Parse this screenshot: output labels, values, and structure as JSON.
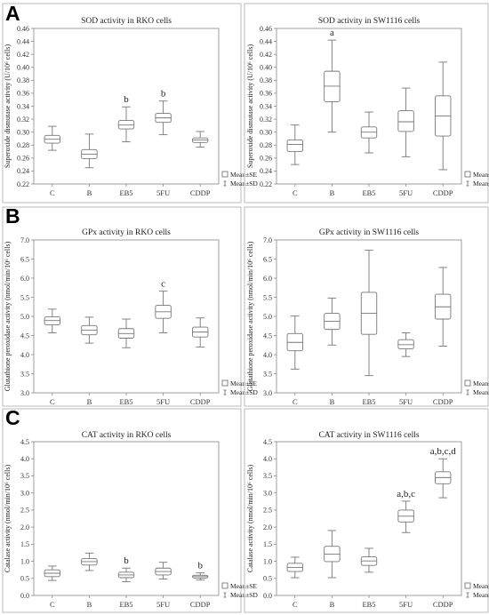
{
  "panels": [
    {
      "letter": "A"
    },
    {
      "letter": "B"
    },
    {
      "letter": "C"
    }
  ],
  "legend": {
    "se_label": "Mean±SE",
    "sd_label": "Mean±SD"
  },
  "chart_data": [
    {
      "type": "box",
      "panel": "A",
      "title": "SOD activity in RKO cells",
      "ylabel": "Superoxide dismutase activity (U/10⁶ cells)",
      "ylim": [
        0.22,
        0.46
      ],
      "yticks": [
        "0.22",
        "0.24",
        "0.26",
        "0.28",
        "0.30",
        "0.32",
        "0.34",
        "0.36",
        "0.38",
        "0.40",
        "0.42",
        "0.44",
        "0.46"
      ],
      "categories": [
        "C",
        "B",
        "EB5",
        "5FU",
        "CDDP"
      ],
      "mean": [
        0.289,
        0.266,
        0.311,
        0.322,
        0.288
      ],
      "se_low": [
        0.283,
        0.259,
        0.305,
        0.315,
        0.284
      ],
      "se_high": [
        0.295,
        0.273,
        0.318,
        0.329,
        0.291
      ],
      "sd_low": [
        0.272,
        0.245,
        0.285,
        0.296,
        0.277
      ],
      "sd_high": [
        0.309,
        0.297,
        0.339,
        0.348,
        0.301
      ],
      "annotations": [
        "",
        "",
        "b",
        "b",
        ""
      ]
    },
    {
      "type": "box",
      "panel": "A",
      "title": "SOD activity in SW1116 cells",
      "ylabel": "Superoxide dismutase activity (U/10⁶ cells)",
      "ylim": [
        0.22,
        0.46
      ],
      "yticks": [
        "0.22",
        "0.24",
        "0.26",
        "0.28",
        "0.30",
        "0.32",
        "0.34",
        "0.36",
        "0.38",
        "0.40",
        "0.42",
        "0.44",
        "0.46"
      ],
      "categories": [
        "C",
        "B",
        "EB5",
        "5FU",
        "CDDP"
      ],
      "mean": [
        0.281,
        0.371,
        0.3,
        0.316,
        0.325
      ],
      "se_low": [
        0.27,
        0.347,
        0.291,
        0.301,
        0.294
      ],
      "se_high": [
        0.288,
        0.394,
        0.308,
        0.333,
        0.356
      ],
      "sd_low": [
        0.25,
        0.3,
        0.268,
        0.262,
        0.242
      ],
      "sd_high": [
        0.311,
        0.442,
        0.331,
        0.368,
        0.408
      ],
      "annotations": [
        "",
        "a",
        "",
        "",
        ""
      ]
    },
    {
      "type": "box",
      "panel": "B",
      "title": "GPx activity in RKO cells",
      "ylabel": "Glutathione peroxidase activity (nmol/min/10⁶ cells)",
      "ylim": [
        3.0,
        7.0
      ],
      "yticks": [
        "3.0",
        "3.5",
        "4.0",
        "4.5",
        "5.0",
        "5.5",
        "6.0",
        "6.5",
        "7.0"
      ],
      "categories": [
        "C",
        "B",
        "EB5",
        "5FU",
        "CDDP"
      ],
      "mean": [
        4.89,
        4.64,
        4.55,
        5.12,
        4.59
      ],
      "se_low": [
        4.78,
        4.52,
        4.43,
        4.95,
        4.46
      ],
      "se_high": [
        4.99,
        4.76,
        4.68,
        5.29,
        4.72
      ],
      "sd_low": [
        4.57,
        4.3,
        4.18,
        4.57,
        4.2
      ],
      "sd_high": [
        5.19,
        4.98,
        4.93,
        5.66,
        4.96
      ],
      "annotations": [
        "",
        "",
        "",
        "c",
        ""
      ]
    },
    {
      "type": "box",
      "panel": "B",
      "title": "GPx activity in SW1116 cells",
      "ylabel": "Glutathione peroxidase activity (nmol/min/10⁶ cells)",
      "ylim": [
        3.0,
        7.0
      ],
      "yticks": [
        "3.0",
        "3.5",
        "4.0",
        "4.5",
        "5.0",
        "5.5",
        "6.0",
        "6.5",
        "7.0"
      ],
      "categories": [
        "C",
        "B",
        "EB5",
        "5FU",
        "CDDP"
      ],
      "mean": [
        4.32,
        4.87,
        5.08,
        4.26,
        5.25
      ],
      "se_low": [
        4.1,
        4.66,
        4.53,
        4.15,
        4.93
      ],
      "se_high": [
        4.55,
        5.08,
        5.63,
        4.39,
        5.58
      ],
      "sd_low": [
        3.62,
        4.25,
        3.45,
        3.95,
        4.22
      ],
      "sd_high": [
        5.01,
        5.48,
        6.73,
        4.57,
        6.28
      ],
      "annotations": [
        "",
        "",
        "",
        "",
        ""
      ]
    },
    {
      "type": "box",
      "panel": "C",
      "title": "CAT activity in RKO cells",
      "ylabel": "Catalase activity (nmol/min/10⁶ cells)",
      "ylim": [
        0.0,
        4.5
      ],
      "yticks": [
        "0.0",
        "0.5",
        "1.0",
        "1.5",
        "2.0",
        "2.5",
        "3.0",
        "3.5",
        "4.0",
        "4.5"
      ],
      "categories": [
        "C",
        "B",
        "EB5",
        "5FU",
        "CDDP"
      ],
      "mean": [
        0.65,
        0.99,
        0.6,
        0.7,
        0.55
      ],
      "se_low": [
        0.55,
        0.89,
        0.52,
        0.6,
        0.51
      ],
      "se_high": [
        0.75,
        1.08,
        0.68,
        0.8,
        0.59
      ],
      "sd_low": [
        0.44,
        0.73,
        0.4,
        0.48,
        0.45
      ],
      "sd_high": [
        0.86,
        1.24,
        0.8,
        0.97,
        0.66
      ],
      "annotations": [
        "",
        "",
        "b",
        "",
        "b"
      ]
    },
    {
      "type": "box",
      "panel": "C",
      "title": "CAT activity in SW1116 cells",
      "ylabel": "Catalase activity (nmol/min/10⁶ cells)",
      "ylim": [
        0.0,
        4.5
      ],
      "yticks": [
        "0.0",
        "0.5",
        "1.0",
        "1.5",
        "2.0",
        "2.5",
        "3.0",
        "3.5",
        "4.0",
        "4.5"
      ],
      "categories": [
        "C",
        "B",
        "EB5",
        "5FU",
        "CDDP"
      ],
      "mean": [
        0.82,
        1.21,
        1.01,
        2.32,
        3.45
      ],
      "se_low": [
        0.7,
        0.99,
        0.88,
        2.15,
        3.27
      ],
      "se_high": [
        0.94,
        1.44,
        1.13,
        2.5,
        3.62
      ],
      "sd_low": [
        0.52,
        0.52,
        0.68,
        1.84,
        2.86
      ],
      "sd_high": [
        1.12,
        1.9,
        1.38,
        2.76,
        4.0
      ],
      "annotations": [
        "",
        "",
        "",
        "a,b,c",
        "a,b,c,d"
      ]
    }
  ]
}
